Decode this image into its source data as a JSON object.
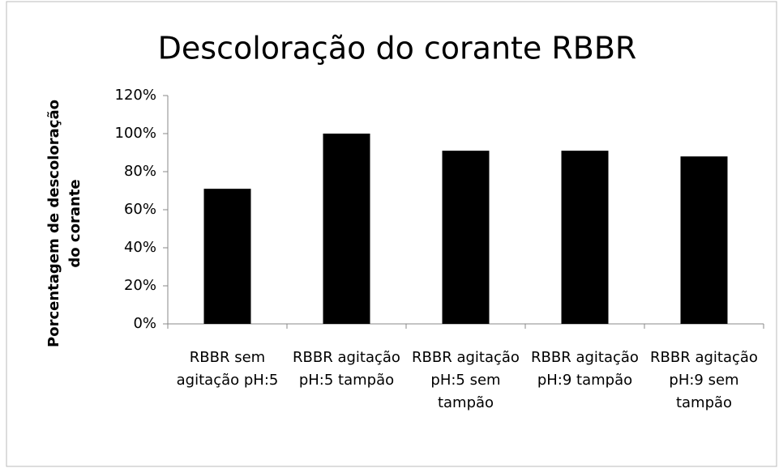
{
  "chart_data": {
    "type": "bar",
    "title": "Descoloração do corante RBBR",
    "y_label": "Porcentagem de descoloração do corante",
    "categories": [
      "RBBR sem agitação pH:5",
      "RBBR agitação pH:5 tampão",
      "RBBR agitação pH:5 sem tampão",
      "RBBR agitação pH:9 tampão",
      "RBBR agitação pH:9 sem tampão"
    ],
    "values": [
      71,
      100,
      91,
      91,
      88
    ],
    "color": "#000000",
    "ylim": [
      0,
      120
    ],
    "yticks": [
      {
        "value": 0,
        "label": "0%"
      },
      {
        "value": 20,
        "label": "20%"
      },
      {
        "value": 40,
        "label": "40%"
      },
      {
        "value": 60,
        "label": "60%"
      },
      {
        "value": 80,
        "label": "80%"
      },
      {
        "value": 100,
        "label": "100%"
      },
      {
        "value": 120,
        "label": "120%"
      }
    ],
    "grid": false
  }
}
